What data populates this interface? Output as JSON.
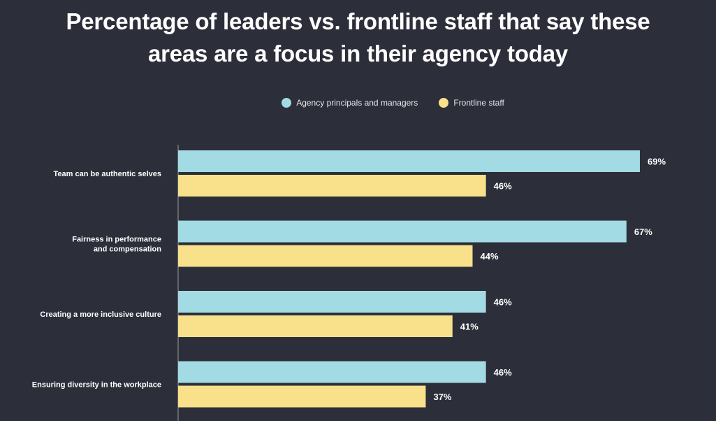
{
  "title_lines": [
    "Percentage of leaders vs. frontline staff that say these",
    "areas are a focus in their agency today"
  ],
  "colors": {
    "background": "#2c2e39",
    "leaders": "#a2dbe3",
    "frontline": "#f9e08a",
    "axis": "#9a9ba3"
  },
  "chart_data": {
    "type": "bar",
    "orientation": "horizontal",
    "title": "Percentage of leaders vs. frontline staff that say these areas are a focus in their agency today",
    "categories": [
      [
        "Team can be authentic selves"
      ],
      [
        "Fairness in performance",
        "and compensation"
      ],
      [
        "Creating a more inclusive culture"
      ],
      [
        "Ensuring diversity in the workplace"
      ]
    ],
    "series": [
      {
        "name": "Agency principals and managers",
        "color": "#a2dbe3",
        "values": [
          69,
          67,
          46,
          46
        ],
        "labels": [
          "69%",
          "67%",
          "46%",
          "46%"
        ]
      },
      {
        "name": "Frontline staff",
        "color": "#f9e08a",
        "values": [
          46,
          44,
          41,
          37
        ],
        "labels": [
          "46%",
          "44%",
          "41%",
          "37%"
        ]
      }
    ],
    "xlim": [
      0,
      69
    ],
    "legend_position": "top-center",
    "grid": false,
    "xlabel": "",
    "ylabel": ""
  }
}
